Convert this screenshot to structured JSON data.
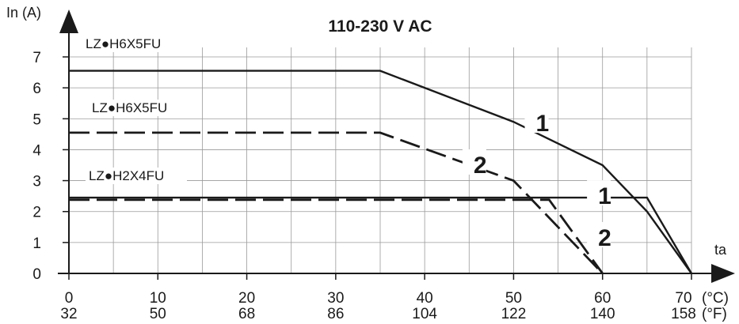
{
  "chart_data": {
    "type": "line",
    "title": "110-230 V AC",
    "ylabel": "In (A)",
    "xlabel": "ta",
    "x_unit_c": "(°C)",
    "x_unit_f": "(°F)",
    "xlim": [
      0,
      70
    ],
    "ylim": [
      0,
      7
    ],
    "grid": true,
    "x_ticks_c": [
      "0",
      "10",
      "20",
      "30",
      "40",
      "50",
      "60",
      "70"
    ],
    "x_ticks_f": [
      "32",
      "50",
      "68",
      "86",
      "104",
      "122",
      "140",
      "158"
    ],
    "x_tick_values": [
      0,
      10,
      20,
      30,
      40,
      50,
      60,
      70
    ],
    "y_ticks": [
      "0",
      "1",
      "2",
      "3",
      "4",
      "5",
      "6",
      "7"
    ],
    "y_tick_values": [
      0,
      1,
      2,
      3,
      4,
      5,
      6,
      7
    ],
    "series": [
      {
        "label": "LZ●H6X5FU",
        "curve": "1",
        "style": "solid",
        "x": [
          0,
          35,
          50,
          60,
          65,
          70
        ],
        "y": [
          6.55,
          6.55,
          4.9,
          3.5,
          2.0,
          0
        ]
      },
      {
        "label": "LZ●H6X5FU",
        "curve": "2",
        "style": "dashed",
        "x": [
          0,
          35,
          50,
          60
        ],
        "y": [
          4.55,
          4.55,
          3.0,
          0
        ]
      },
      {
        "label": "LZ●H2X4FU",
        "curve": "1",
        "style": "solid",
        "x": [
          0,
          65,
          70
        ],
        "y": [
          2.45,
          2.45,
          0
        ]
      },
      {
        "label": "LZ●H2X4FU",
        "curve": "2",
        "style": "dashed",
        "x": [
          0,
          54,
          60
        ],
        "y": [
          2.38,
          2.38,
          0
        ]
      }
    ],
    "annotations": [
      {
        "text": "1",
        "x": 52.5,
        "y": 4.8
      },
      {
        "text": "2",
        "x": 45.5,
        "y": 3.45
      },
      {
        "text": "1",
        "x": 59.5,
        "y": 2.45
      },
      {
        "text": "2",
        "x": 59.5,
        "y": 1.1
      }
    ]
  }
}
